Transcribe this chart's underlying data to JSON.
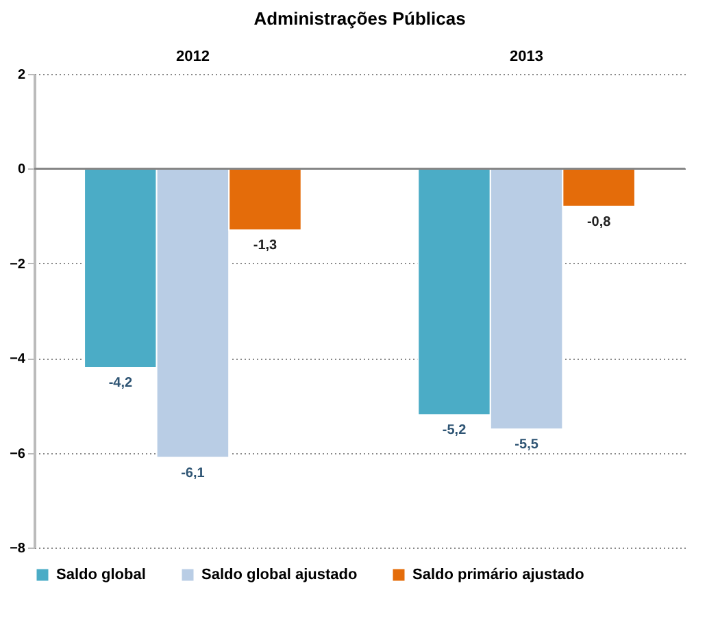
{
  "chart_data": {
    "type": "bar",
    "title": "Administrações Públicas",
    "categories": [
      "2012",
      "2013"
    ],
    "series": [
      {
        "name": "Saldo global",
        "color": "#4bacc6",
        "values": [
          -4.2,
          -5.2
        ],
        "value_labels": [
          "-4,2",
          "-5,2"
        ]
      },
      {
        "name": "Saldo global ajustado",
        "color": "#b9cde5",
        "values": [
          -6.1,
          -5.5
        ],
        "value_labels": [
          "-6,1",
          "-5,5"
        ]
      },
      {
        "name": "Saldo primário ajustado",
        "color": "#e46c0a",
        "values": [
          -1.3,
          -0.8
        ],
        "value_labels": [
          "-1,3",
          "-0,8"
        ]
      }
    ],
    "ylim": [
      -8,
      2
    ],
    "yticks": [
      -8,
      -6,
      -4,
      -2,
      0,
      2
    ],
    "grid": "y",
    "legend": "bottom",
    "ref_lines": [
      {
        "axis": "y",
        "value": 0,
        "color": "#868686"
      }
    ]
  }
}
